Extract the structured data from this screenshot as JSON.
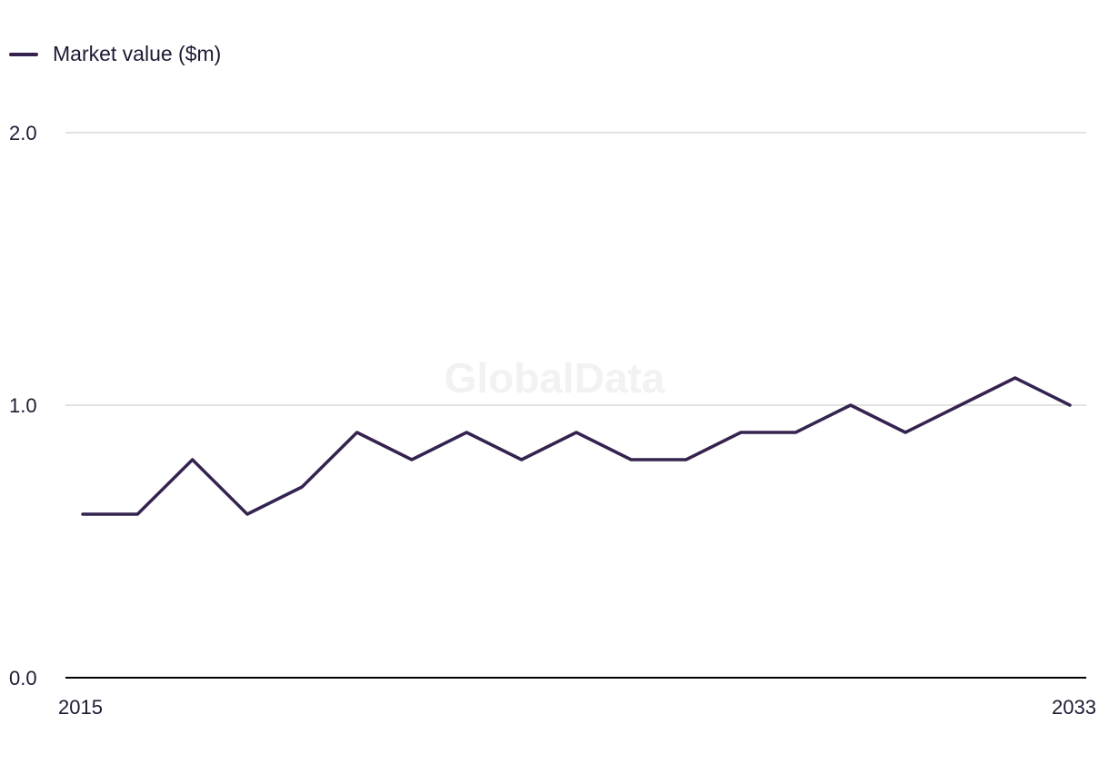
{
  "chart_data": {
    "type": "line",
    "title": "",
    "xlabel": "",
    "ylabel": "",
    "x": [
      2015,
      2016,
      2017,
      2018,
      2019,
      2020,
      2021,
      2022,
      2023,
      2024,
      2025,
      2026,
      2027,
      2028,
      2029,
      2030,
      2031,
      2032,
      2033
    ],
    "series": [
      {
        "name": "Market value ($m)",
        "values": [
          0.6,
          0.6,
          0.8,
          0.6,
          0.7,
          0.9,
          0.8,
          0.9,
          0.8,
          0.9,
          0.8,
          0.8,
          0.9,
          0.9,
          1.0,
          0.9,
          1.0,
          1.1,
          1.0
        ],
        "color": "#35234f"
      }
    ],
    "ylim": [
      0.0,
      2.0
    ],
    "yticks": [
      "0.0",
      "1.0",
      "2.0"
    ],
    "xticks": [
      "2015",
      "2033"
    ],
    "grid": true,
    "legend": "top-left",
    "watermark": "GlobalData"
  },
  "colors": {
    "line": "#35234f",
    "grid": "#d9d9d9",
    "axis": "#000000",
    "text": "#1f1a33",
    "watermark": "#f2f2f2"
  }
}
